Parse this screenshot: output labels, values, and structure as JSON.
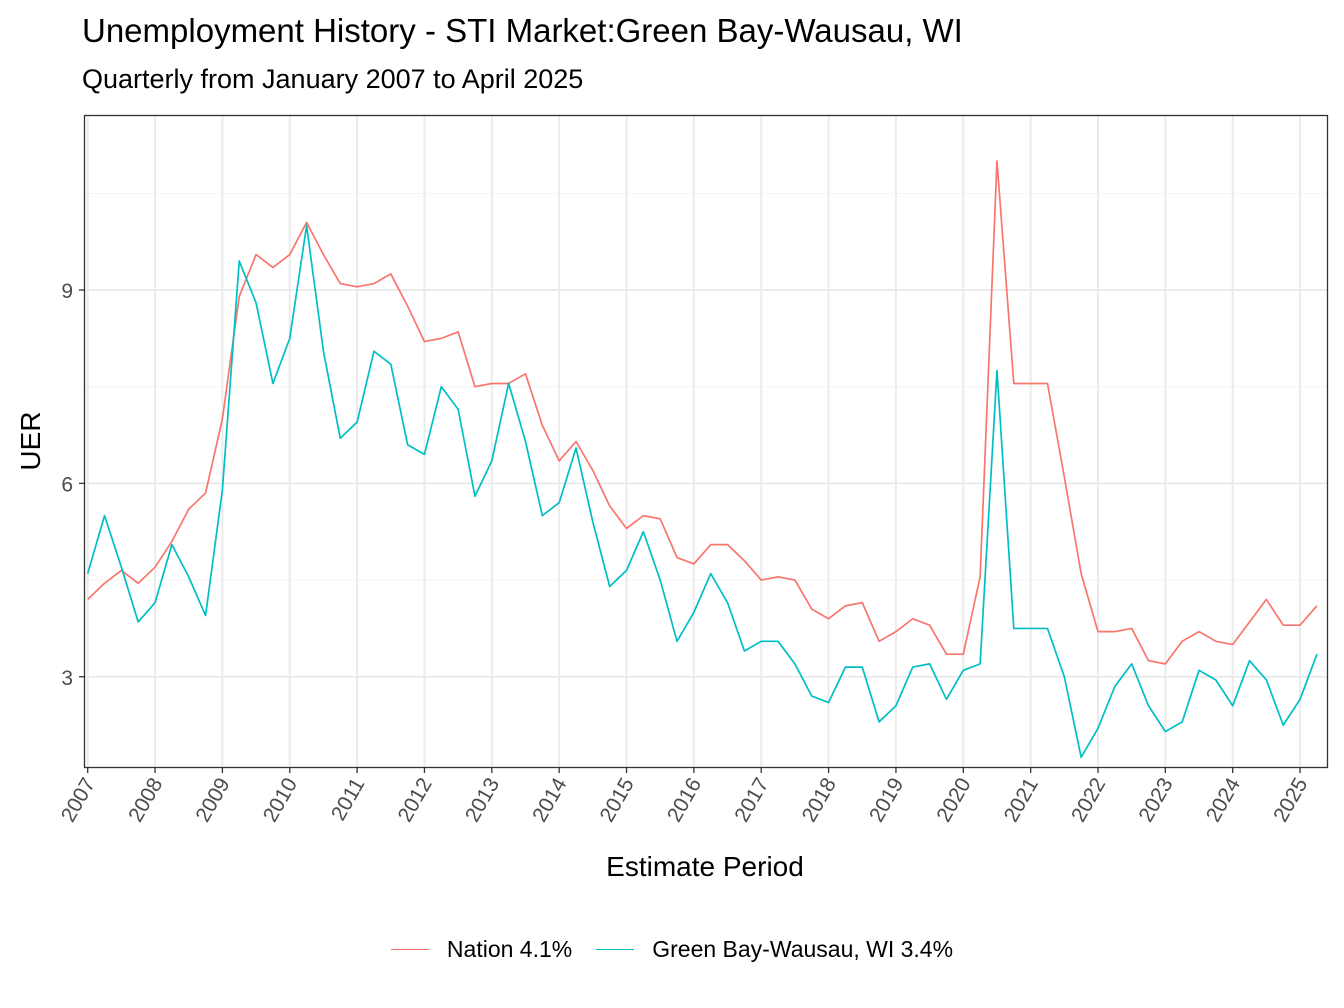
{
  "chart_data": {
    "type": "line",
    "title": "Unemployment History - STI Market:Green Bay-Wausau, WI",
    "subtitle": "Quarterly from January 2007 to April 2025",
    "xlabel": "Estimate Period",
    "ylabel": "UER",
    "x_ticks": [
      "2007",
      "2008",
      "2009",
      "2010",
      "2011",
      "2012",
      "2013",
      "2014",
      "2015",
      "2016",
      "2017",
      "2018",
      "2019",
      "2020",
      "2021",
      "2022",
      "2023",
      "2024",
      "2025"
    ],
    "y_ticks": [
      3,
      6,
      9
    ],
    "xlim": [
      2006.96,
      2025.4
    ],
    "ylim": [
      1.6,
      11.7
    ],
    "grid": true,
    "legend_position": "bottom",
    "x": [
      2007.0,
      2007.25,
      2007.5,
      2007.75,
      2008.0,
      2008.25,
      2008.5,
      2008.75,
      2009.0,
      2009.25,
      2009.5,
      2009.75,
      2010.0,
      2010.25,
      2010.5,
      2010.75,
      2011.0,
      2011.25,
      2011.5,
      2011.75,
      2012.0,
      2012.25,
      2012.5,
      2012.75,
      2013.0,
      2013.25,
      2013.5,
      2013.75,
      2014.0,
      2014.25,
      2014.5,
      2014.75,
      2015.0,
      2015.25,
      2015.5,
      2015.75,
      2016.0,
      2016.25,
      2016.5,
      2016.75,
      2017.0,
      2017.25,
      2017.5,
      2017.75,
      2018.0,
      2018.25,
      2018.5,
      2018.75,
      2019.0,
      2019.25,
      2019.5,
      2019.75,
      2020.0,
      2020.25,
      2020.5,
      2020.75,
      2021.0,
      2021.25,
      2021.5,
      2021.75,
      2022.0,
      2022.25,
      2022.5,
      2022.75,
      2023.0,
      2023.25,
      2023.5,
      2023.75,
      2024.0,
      2024.25,
      2024.5,
      2024.75,
      2025.0,
      2025.25
    ],
    "series": [
      {
        "name": "Nation 4.1%",
        "color": "#F8766D",
        "values": [
          4.2,
          4.45,
          4.65,
          4.45,
          4.7,
          5.1,
          5.6,
          5.85,
          7.0,
          8.9,
          9.55,
          9.35,
          9.55,
          10.05,
          9.55,
          9.1,
          9.05,
          9.1,
          9.25,
          8.75,
          8.2,
          8.25,
          8.35,
          7.5,
          7.55,
          7.55,
          7.7,
          6.9,
          6.35,
          6.65,
          6.2,
          5.65,
          5.3,
          5.5,
          5.45,
          4.85,
          4.75,
          5.05,
          5.05,
          4.8,
          4.5,
          4.55,
          4.5,
          4.05,
          3.9,
          4.1,
          4.15,
          3.55,
          3.7,
          3.9,
          3.8,
          3.35,
          3.35,
          4.55,
          11.0,
          7.55,
          7.55,
          7.55,
          6.1,
          4.6,
          3.7,
          3.7,
          3.75,
          3.25,
          3.2,
          3.55,
          3.7,
          3.55,
          3.5,
          3.85,
          4.2,
          3.8,
          3.8,
          4.1
        ]
      },
      {
        "name": "Green Bay-Wausau, WI 3.4%",
        "color": "#00BFC4",
        "values": [
          4.6,
          5.5,
          4.7,
          3.85,
          4.15,
          5.05,
          4.55,
          3.95,
          5.9,
          9.45,
          8.8,
          7.55,
          8.25,
          10.0,
          8.05,
          6.7,
          6.95,
          8.05,
          7.85,
          6.6,
          6.45,
          7.5,
          7.15,
          5.8,
          6.35,
          7.55,
          6.65,
          5.5,
          5.7,
          6.55,
          5.4,
          4.4,
          4.65,
          5.25,
          4.5,
          3.55,
          4.0,
          4.6,
          4.15,
          3.4,
          3.55,
          3.55,
          3.2,
          2.7,
          2.6,
          3.15,
          3.15,
          2.3,
          2.55,
          3.15,
          3.2,
          2.65,
          3.1,
          3.2,
          7.75,
          3.75,
          3.75,
          3.75,
          3.0,
          1.75,
          2.2,
          2.85,
          3.2,
          2.55,
          2.15,
          2.3,
          3.1,
          2.95,
          2.55,
          3.25,
          2.95,
          2.25,
          2.65,
          3.35
        ]
      }
    ]
  }
}
